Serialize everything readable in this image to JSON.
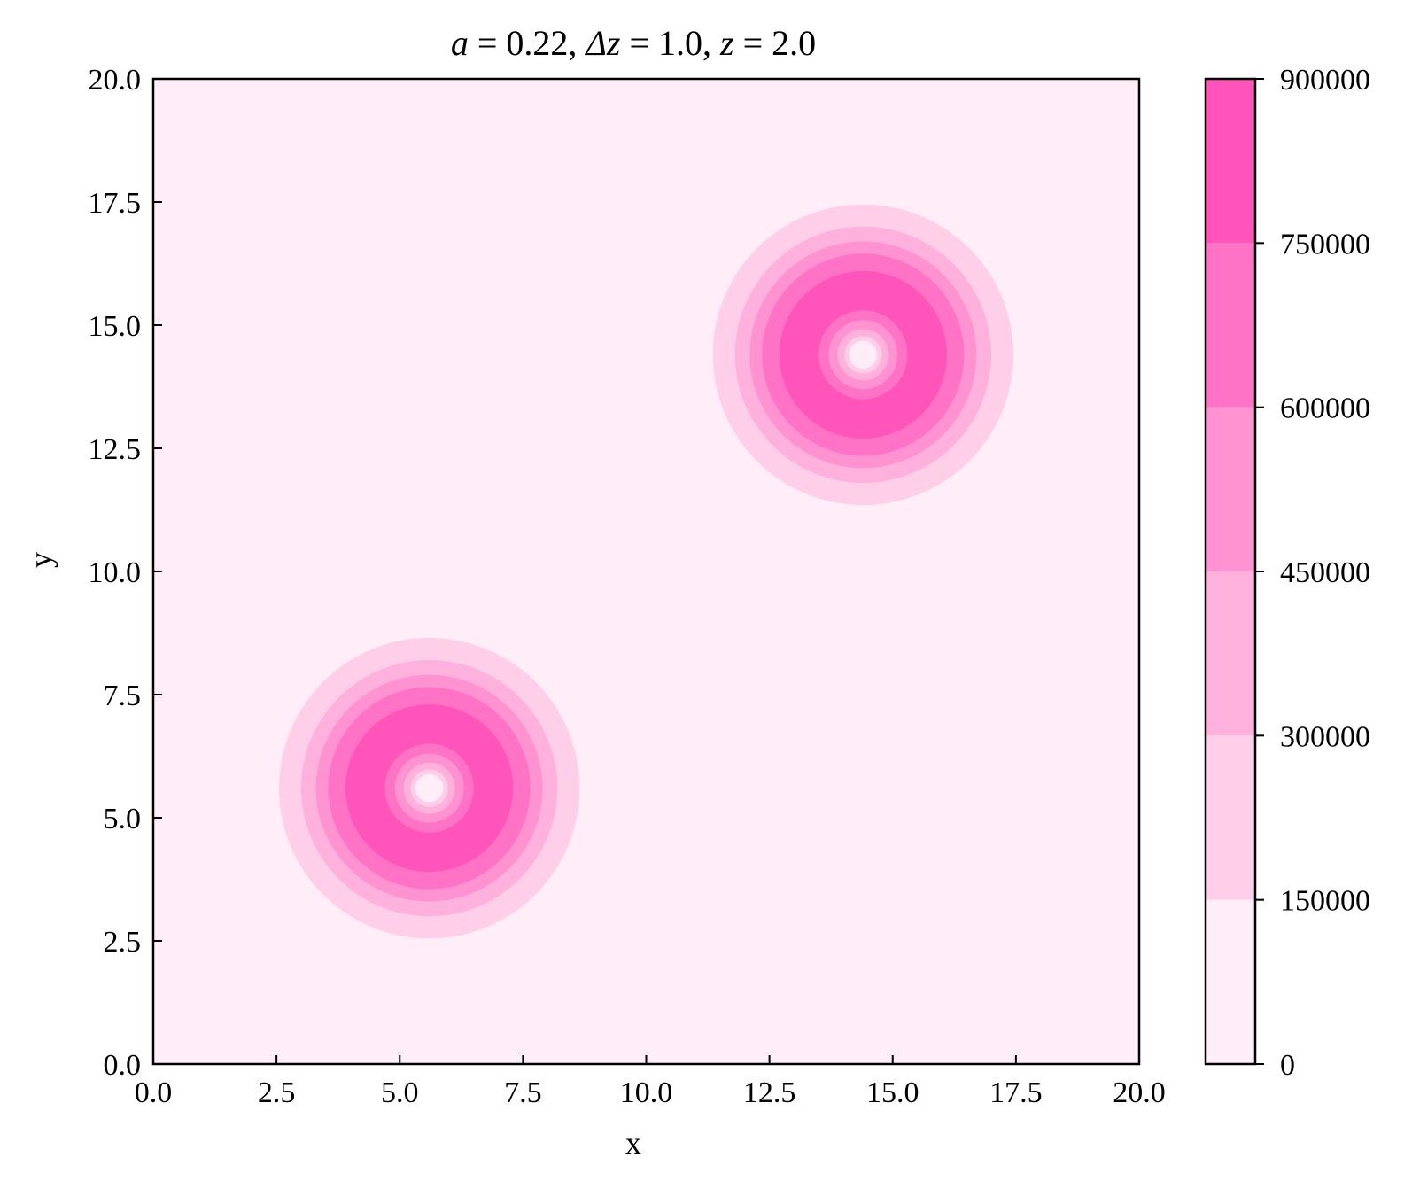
{
  "chart_data": {
    "type": "heatmap",
    "subtype": "filled-contour",
    "title_parts": {
      "a_sym": "a",
      "a_val": " = 0.22, ",
      "dz_sym": "Δz",
      "dz_val": " = 1.0, ",
      "z_sym": "z",
      "z_val": " = 2.0"
    },
    "xlabel": "x",
    "ylabel": "y",
    "xlim": [
      0.0,
      20.0
    ],
    "ylim": [
      0.0,
      20.0
    ],
    "xticks": [
      "0.0",
      "2.5",
      "5.0",
      "7.5",
      "10.0",
      "12.5",
      "15.0",
      "17.5",
      "20.0"
    ],
    "yticks": [
      "0.0",
      "2.5",
      "5.0",
      "7.5",
      "10.0",
      "12.5",
      "15.0",
      "17.5",
      "20.0"
    ],
    "grid": false,
    "colorbar": {
      "ticks": [
        "0",
        "150000",
        "300000",
        "450000",
        "600000",
        "750000",
        "900000"
      ],
      "levels": [
        0,
        150000,
        300000,
        450000,
        600000,
        750000,
        900000
      ],
      "colors": [
        "#ffeef8",
        "#ffcfe9",
        "#ffb1dd",
        "#ff92d1",
        "#ff73c6",
        "#ff55bb"
      ]
    },
    "vortices": [
      {
        "cx": 5.6,
        "cy": 5.6
      },
      {
        "cx": 14.4,
        "cy": 14.4
      }
    ],
    "ring_levels": [
      {
        "r": 3.05,
        "level": 1
      },
      {
        "r": 2.6,
        "level": 2
      },
      {
        "r": 2.3,
        "level": 3
      },
      {
        "r": 2.05,
        "level": 4
      },
      {
        "r": 1.7,
        "level": 5
      },
      {
        "r": 0.9,
        "level": 4
      },
      {
        "r": 0.7,
        "level": 3
      },
      {
        "r": 0.52,
        "level": 2
      },
      {
        "r": 0.38,
        "level": 1
      },
      {
        "r": 0.28,
        "level": 0
      }
    ]
  }
}
